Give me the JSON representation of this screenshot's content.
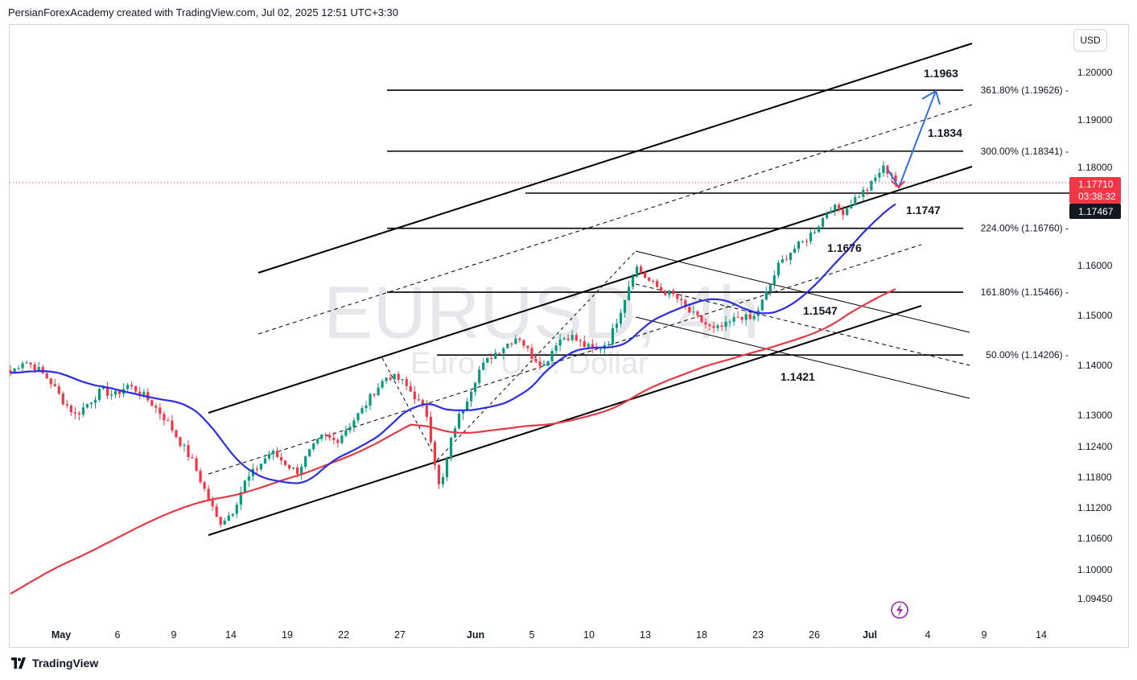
{
  "header": {
    "text": "PersianForexAcademy created with TradingView.com, Jul 02, 2025 12:51 UTC+3:30"
  },
  "footer": {
    "brand": "TradingView"
  },
  "currency": "USD",
  "watermark": {
    "symbol": "EURUSD, 4h",
    "description": "Euro / U.S. Dollar"
  },
  "price_tags": {
    "last_price": "1.17710",
    "countdown": "03:38:32",
    "hline_price": "1.17467",
    "last_color": "#f23645",
    "hline_color": "#131722"
  },
  "colors": {
    "bull": "#089981",
    "bear": "#f23645",
    "ma_fast": "#2a2ee0",
    "ma_slow": "#e53945",
    "forecast": "#2f6fe4"
  },
  "chart_data": {
    "type": "candlestick",
    "symbol": "EURUSD",
    "timeframe": "4h",
    "y_axis": {
      "labels": [
        "1.20000",
        "1.19000",
        "1.18000",
        "1.16000",
        "1.15000",
        "1.14000",
        "1.13000",
        "1.12400",
        "1.11800",
        "1.11200",
        "1.10600",
        "1.10000",
        "1.09450"
      ]
    },
    "x_axis": {
      "labels": [
        "May",
        "6",
        "9",
        "14",
        "19",
        "22",
        "27",
        "Jun",
        "5",
        "10",
        "13",
        "18",
        "23",
        "26",
        "Jul",
        "4",
        "9",
        "14"
      ]
    },
    "fib_levels": [
      {
        "label": "361.80% (1.19626)",
        "price": 1.19626
      },
      {
        "label": "300.00% (1.18341)",
        "price": 1.18341
      },
      {
        "label": "224.00% (1.16760)",
        "price": 1.1676
      },
      {
        "label": "161.80% (1.15466)",
        "price": 1.15466
      },
      {
        "label": "50.00% (1.14206)",
        "price": 1.14206
      }
    ],
    "annotations": [
      "1.1963",
      "1.1834",
      "1.1747",
      "1.1676",
      "1.1547",
      "1.1421"
    ],
    "close_anchors": [
      [
        1.1385,
        1.141,
        1.1395,
        1.137,
        1.133,
        1.13,
        1.1325,
        1.135,
        1.134,
        1.136,
        1.1345,
        1.132,
        1.129,
        1.125,
        1.121,
        1.115,
        1.109,
        1.111,
        1.117,
        1.12,
        1.123,
        1.121,
        1.119,
        1.123,
        1.126,
        1.125,
        1.128,
        1.131,
        1.135,
        1.138,
        1.137,
        1.134,
        1.13,
        1.115,
        1.127,
        1.133,
        1.139,
        1.142,
        1.144,
        1.146,
        1.142,
        1.14,
        1.145,
        1.146,
        1.144,
        1.143,
        1.145,
        1.152,
        1.16,
        1.157,
        1.155,
        1.154,
        1.151,
        1.149,
        1.147,
        1.148,
        1.15,
        1.149,
        1.154,
        1.16,
        1.163,
        1.165,
        1.168,
        1.172,
        1.171,
        1.174,
        1.176,
        1.18,
        1.178
      ]
    ],
    "last_close": 1.1771,
    "moving_averages": [
      {
        "period": 50,
        "color": "#2a2ee0"
      },
      {
        "period": 200,
        "color": "#e53945"
      }
    ]
  }
}
